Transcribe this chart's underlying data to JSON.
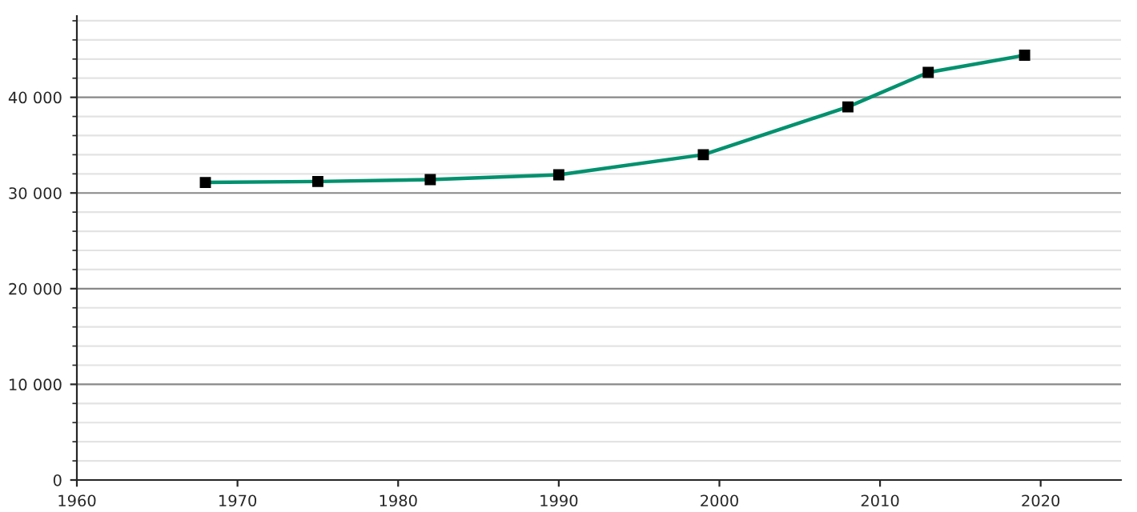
{
  "chart_data": {
    "type": "line",
    "x": [
      1968,
      1975,
      1982,
      1990,
      1999,
      2008,
      2013,
      2019
    ],
    "series": [
      {
        "color": "#00916e",
        "values": [
          31100,
          31200,
          31400,
          31900,
          34000,
          39000,
          42600,
          44400
        ]
      }
    ],
    "marker": "square",
    "xlim": [
      1960,
      2025
    ],
    "xticks": [
      1960,
      1970,
      1980,
      1990,
      2000,
      2010,
      2020
    ],
    "ylim": [
      0,
      48500
    ],
    "yticks": [
      0,
      {
        "value": 10000,
        "label": "10 000"
      },
      {
        "value": 20000,
        "label": "20 000"
      },
      {
        "value": 30000,
        "label": "30 000"
      },
      {
        "value": 40000,
        "label": "40 000"
      }
    ],
    "grid": "y",
    "legend": false
  }
}
